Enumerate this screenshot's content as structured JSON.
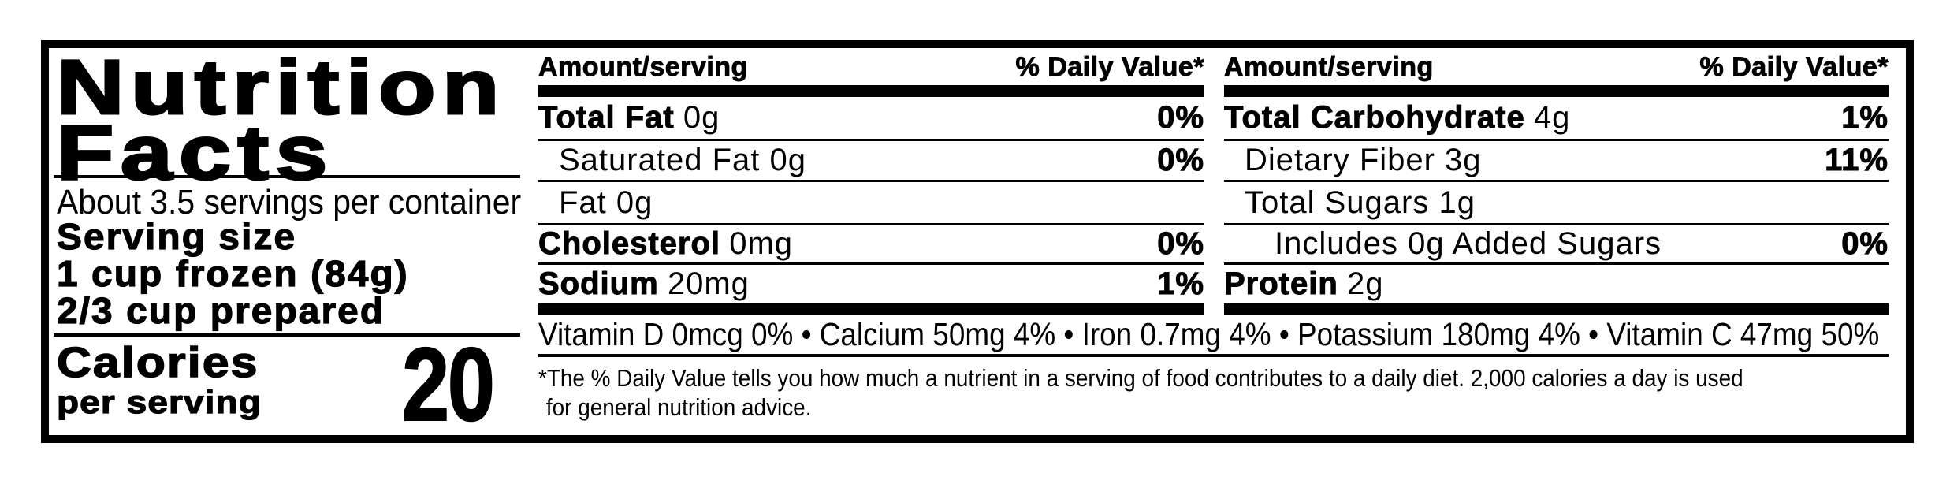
{
  "colors": {
    "ink": "#000000",
    "paper": "#ffffff"
  },
  "label": {
    "title_line1": "Nutrition",
    "title_line2": "Facts",
    "servings_per_container": "About 3.5 servings per container",
    "serving_size_heading": "Serving size",
    "serving_size_line1": "1 cup frozen (84g)",
    "serving_size_line2": "2/3 cup prepared",
    "calories_word": "Calories",
    "calories_subword": "per serving",
    "calories_value": "20",
    "header_amount": "Amount/serving",
    "header_dv": "% Daily Value*",
    "middle_rows": [
      {
        "bold": "Total Fat",
        "rest": "0g",
        "dv": "0%"
      },
      {
        "bold": "",
        "rest": "Saturated Fat 0g",
        "dv": "0%"
      },
      {
        "bold": "",
        "rest": "Fat 0g",
        "dv": ""
      },
      {
        "bold": "Cholesterol",
        "rest": "0mg",
        "dv": "0%"
      },
      {
        "bold": "Sodium",
        "rest": "20mg",
        "dv": "1%"
      }
    ],
    "right_rows": [
      {
        "bold": "Total Carbohydrate",
        "rest": "4g",
        "dv": "1%"
      },
      {
        "bold": "",
        "rest": "Dietary Fiber 3g",
        "dv": "11%"
      },
      {
        "bold": "",
        "rest": "Total Sugars 1g",
        "dv": ""
      },
      {
        "bold": "",
        "rest": "Includes 0g Added Sugars",
        "dv": "0%"
      },
      {
        "bold": "Protein",
        "rest": "2g",
        "dv": ""
      }
    ],
    "micronutrients_line": "Vitamin D 0mcg 0% • Calcium 50mg 4% • Iron 0.7mg 4% • Potassium 180mg 4% • Vitamin C 47mg 50%",
    "footnote_line1": "*The % Daily Value tells you how much a nutrient in a serving of food contributes to a daily diet. 2,000 calories a day is used",
    "footnote_line2": "for general nutrition advice."
  }
}
